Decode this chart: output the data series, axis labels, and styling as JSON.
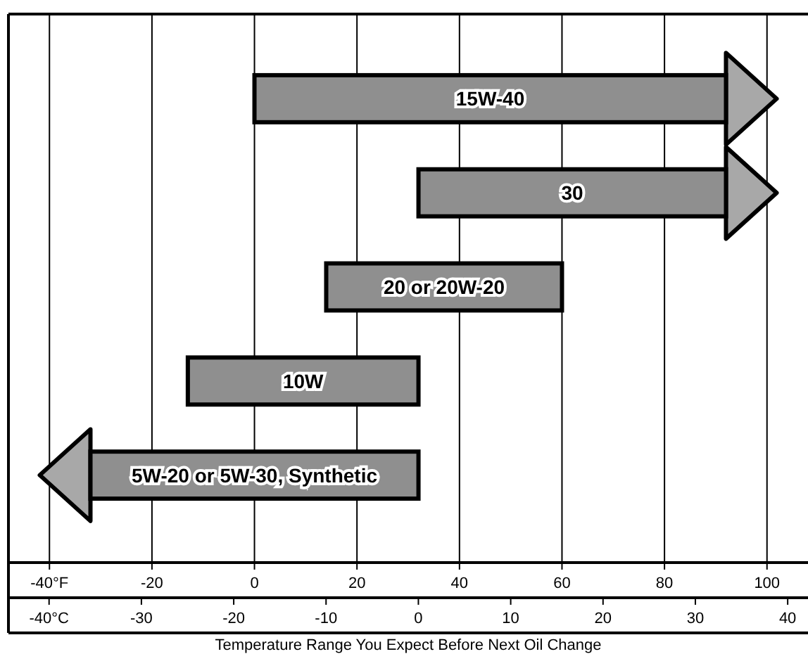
{
  "chart_data": {
    "type": "bar",
    "orientation": "horizontal",
    "xlabel": "Temperature Range You Expect Before Next Oil Change",
    "categories": [
      "15W-40",
      "30",
      "20 or 20W-20",
      "10W",
      "5W-20 or 5W-30, Synthetic"
    ],
    "base": [
      0,
      32,
      14,
      -13,
      -32
    ],
    "values": [
      92,
      60,
      46,
      45,
      64
    ],
    "color": "#8f8f8f",
    "xlim": [
      -48,
      108
    ],
    "xticks": [
      {
        "value": -40,
        "label": "-40°F"
      },
      -20,
      0,
      20,
      40,
      60,
      80,
      100
    ],
    "x2lim": [
      -44.4,
      42.2
    ],
    "x2ticks": [
      {
        "value": -40,
        "label": "-40°C"
      },
      -30,
      -20,
      -10,
      0,
      10,
      20,
      30,
      40
    ],
    "grid": "x"
  }
}
